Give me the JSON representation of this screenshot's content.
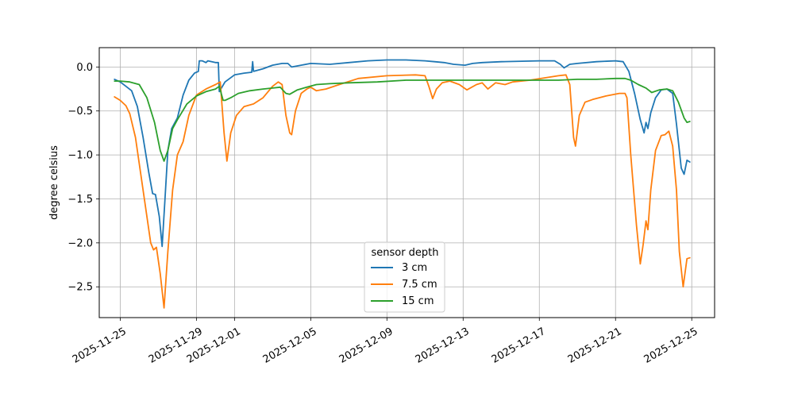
{
  "chart_data": {
    "type": "line",
    "title": "",
    "xlabel": "",
    "ylabel": "degree celsius",
    "x_ticks": [
      "2025-11-25",
      "2025-11-29",
      "2025-12-01",
      "2025-12-05",
      "2025-12-09",
      "2025-12-13",
      "2025-12-17",
      "2025-12-21",
      "2025-12-25"
    ],
    "y_ticks": [
      "0.0",
      "−0.5",
      "−1.0",
      "−1.5",
      "−2.0",
      "−2.5"
    ],
    "x_range_days": [
      -1.1,
      31.2
    ],
    "x_origin": "2025-11-25",
    "ylim": [
      -2.85,
      0.22
    ],
    "grid": true,
    "legend": {
      "title": "sensor depth",
      "placement": "lower center"
    },
    "series": [
      {
        "name": "3 cm",
        "color": "#1f77b4",
        "points": [
          [
            -0.3,
            -0.14
          ],
          [
            0,
            -0.17
          ],
          [
            0.3,
            -0.22
          ],
          [
            0.6,
            -0.27
          ],
          [
            0.9,
            -0.45
          ],
          [
            1.2,
            -0.8
          ],
          [
            1.5,
            -1.2
          ],
          [
            1.7,
            -1.44
          ],
          [
            1.85,
            -1.45
          ],
          [
            2.05,
            -1.7
          ],
          [
            2.2,
            -2.04
          ],
          [
            2.35,
            -1.5
          ],
          [
            2.5,
            -0.95
          ],
          [
            2.7,
            -0.7
          ],
          [
            3.0,
            -0.58
          ],
          [
            3.3,
            -0.32
          ],
          [
            3.6,
            -0.15
          ],
          [
            3.9,
            -0.07
          ],
          [
            4.1,
            -0.05
          ],
          [
            4.15,
            0.07
          ],
          [
            4.3,
            0.07
          ],
          [
            4.5,
            0.05
          ],
          [
            4.6,
            0.07
          ],
          [
            5.0,
            0.05
          ],
          [
            5.15,
            0.05
          ],
          [
            5.2,
            -0.28
          ],
          [
            5.5,
            -0.17
          ],
          [
            6.0,
            -0.09
          ],
          [
            6.5,
            -0.07
          ],
          [
            6.9,
            -0.06
          ],
          [
            6.95,
            0.06
          ],
          [
            7.0,
            -0.05
          ],
          [
            7.5,
            -0.02
          ],
          [
            8.0,
            0.02
          ],
          [
            8.5,
            0.04
          ],
          [
            8.8,
            0.04
          ],
          [
            9.0,
            0.0
          ],
          [
            9.5,
            0.02
          ],
          [
            10,
            0.04
          ],
          [
            11,
            0.03
          ],
          [
            12,
            0.05
          ],
          [
            13,
            0.07
          ],
          [
            14,
            0.08
          ],
          [
            15,
            0.08
          ],
          [
            16,
            0.07
          ],
          [
            16.5,
            0.06
          ],
          [
            17,
            0.05
          ],
          [
            17.5,
            0.03
          ],
          [
            18.1,
            0.02
          ],
          [
            18.5,
            0.04
          ],
          [
            19,
            0.05
          ],
          [
            20,
            0.06
          ],
          [
            22,
            0.07
          ],
          [
            22.8,
            0.07
          ],
          [
            23.1,
            0.03
          ],
          [
            23.3,
            -0.01
          ],
          [
            23.6,
            0.03
          ],
          [
            24,
            0.04
          ],
          [
            25,
            0.06
          ],
          [
            26,
            0.07
          ],
          [
            26.4,
            0.06
          ],
          [
            26.7,
            -0.05
          ],
          [
            27.0,
            -0.3
          ],
          [
            27.3,
            -0.6
          ],
          [
            27.5,
            -0.75
          ],
          [
            27.6,
            -0.63
          ],
          [
            27.7,
            -0.7
          ],
          [
            27.85,
            -0.52
          ],
          [
            28.1,
            -0.35
          ],
          [
            28.4,
            -0.26
          ],
          [
            28.7,
            -0.25
          ],
          [
            29.0,
            -0.3
          ],
          [
            29.2,
            -0.65
          ],
          [
            29.45,
            -1.15
          ],
          [
            29.6,
            -1.22
          ],
          [
            29.75,
            -1.06
          ],
          [
            29.9,
            -1.08
          ]
        ]
      },
      {
        "name": "7.5 cm",
        "color": "#ff7f0e",
        "points": [
          [
            -0.3,
            -0.34
          ],
          [
            0,
            -0.38
          ],
          [
            0.3,
            -0.44
          ],
          [
            0.5,
            -0.53
          ],
          [
            0.8,
            -0.8
          ],
          [
            1.0,
            -1.1
          ],
          [
            1.3,
            -1.55
          ],
          [
            1.6,
            -2.0
          ],
          [
            1.75,
            -2.08
          ],
          [
            1.9,
            -2.05
          ],
          [
            2.1,
            -2.35
          ],
          [
            2.3,
            -2.74
          ],
          [
            2.5,
            -2.1
          ],
          [
            2.75,
            -1.4
          ],
          [
            3.0,
            -1.0
          ],
          [
            3.3,
            -0.85
          ],
          [
            3.6,
            -0.55
          ],
          [
            4.0,
            -0.32
          ],
          [
            4.5,
            -0.25
          ],
          [
            5.0,
            -0.2
          ],
          [
            5.25,
            -0.17
          ],
          [
            5.45,
            -0.75
          ],
          [
            5.6,
            -1.07
          ],
          [
            5.8,
            -0.75
          ],
          [
            6.1,
            -0.55
          ],
          [
            6.5,
            -0.45
          ],
          [
            7.0,
            -0.42
          ],
          [
            7.5,
            -0.35
          ],
          [
            8.0,
            -0.22
          ],
          [
            8.3,
            -0.17
          ],
          [
            8.5,
            -0.2
          ],
          [
            8.7,
            -0.55
          ],
          [
            8.9,
            -0.75
          ],
          [
            9.0,
            -0.77
          ],
          [
            9.2,
            -0.5
          ],
          [
            9.5,
            -0.3
          ],
          [
            9.8,
            -0.25
          ],
          [
            10.0,
            -0.23
          ],
          [
            10.3,
            -0.27
          ],
          [
            10.8,
            -0.25
          ],
          [
            11.5,
            -0.2
          ],
          [
            12.5,
            -0.13
          ],
          [
            14,
            -0.1
          ],
          [
            15.5,
            -0.09
          ],
          [
            16.0,
            -0.1
          ],
          [
            16.2,
            -0.22
          ],
          [
            16.4,
            -0.36
          ],
          [
            16.6,
            -0.25
          ],
          [
            16.9,
            -0.18
          ],
          [
            17.3,
            -0.16
          ],
          [
            17.8,
            -0.2
          ],
          [
            18.2,
            -0.26
          ],
          [
            18.7,
            -0.2
          ],
          [
            19.0,
            -0.18
          ],
          [
            19.3,
            -0.25
          ],
          [
            19.7,
            -0.18
          ],
          [
            20.2,
            -0.2
          ],
          [
            20.6,
            -0.17
          ],
          [
            21.5,
            -0.15
          ],
          [
            23.0,
            -0.1
          ],
          [
            23.4,
            -0.09
          ],
          [
            23.6,
            -0.2
          ],
          [
            23.8,
            -0.8
          ],
          [
            23.9,
            -0.9
          ],
          [
            24.1,
            -0.55
          ],
          [
            24.4,
            -0.4
          ],
          [
            24.8,
            -0.37
          ],
          [
            25.5,
            -0.33
          ],
          [
            26.2,
            -0.3
          ],
          [
            26.5,
            -0.3
          ],
          [
            26.6,
            -0.35
          ],
          [
            26.8,
            -1.0
          ],
          [
            27.1,
            -1.8
          ],
          [
            27.3,
            -2.24
          ],
          [
            27.45,
            -2.02
          ],
          [
            27.6,
            -1.75
          ],
          [
            27.7,
            -1.85
          ],
          [
            27.85,
            -1.4
          ],
          [
            28.1,
            -0.95
          ],
          [
            28.4,
            -0.78
          ],
          [
            28.6,
            -0.77
          ],
          [
            28.8,
            -0.73
          ],
          [
            29.0,
            -0.9
          ],
          [
            29.2,
            -1.4
          ],
          [
            29.35,
            -2.1
          ],
          [
            29.55,
            -2.5
          ],
          [
            29.75,
            -2.18
          ],
          [
            29.9,
            -2.17
          ]
        ]
      },
      {
        "name": "15 cm",
        "color": "#2ca02c",
        "points": [
          [
            -0.3,
            -0.16
          ],
          [
            0,
            -0.16
          ],
          [
            0.5,
            -0.17
          ],
          [
            1.0,
            -0.2
          ],
          [
            1.4,
            -0.35
          ],
          [
            1.8,
            -0.63
          ],
          [
            2.1,
            -0.95
          ],
          [
            2.3,
            -1.07
          ],
          [
            2.5,
            -0.95
          ],
          [
            2.75,
            -0.7
          ],
          [
            3.0,
            -0.6
          ],
          [
            3.5,
            -0.42
          ],
          [
            4.0,
            -0.33
          ],
          [
            4.5,
            -0.28
          ],
          [
            5.0,
            -0.25
          ],
          [
            5.2,
            -0.22
          ],
          [
            5.4,
            -0.38
          ],
          [
            5.5,
            -0.38
          ],
          [
            5.8,
            -0.35
          ],
          [
            6.2,
            -0.3
          ],
          [
            6.8,
            -0.27
          ],
          [
            7.5,
            -0.25
          ],
          [
            8.0,
            -0.24
          ],
          [
            8.4,
            -0.23
          ],
          [
            8.7,
            -0.3
          ],
          [
            8.9,
            -0.31
          ],
          [
            9.3,
            -0.26
          ],
          [
            9.8,
            -0.23
          ],
          [
            10.3,
            -0.2
          ],
          [
            11.0,
            -0.19
          ],
          [
            12.0,
            -0.18
          ],
          [
            13.5,
            -0.17
          ],
          [
            15,
            -0.15
          ],
          [
            16.5,
            -0.15
          ],
          [
            18,
            -0.15
          ],
          [
            20,
            -0.15
          ],
          [
            21,
            -0.15
          ],
          [
            22,
            -0.15
          ],
          [
            23,
            -0.15
          ],
          [
            24,
            -0.14
          ],
          [
            25,
            -0.14
          ],
          [
            26,
            -0.13
          ],
          [
            26.5,
            -0.13
          ],
          [
            26.8,
            -0.15
          ],
          [
            27.2,
            -0.2
          ],
          [
            27.6,
            -0.24
          ],
          [
            27.9,
            -0.29
          ],
          [
            28.3,
            -0.26
          ],
          [
            28.7,
            -0.25
          ],
          [
            29.0,
            -0.27
          ],
          [
            29.3,
            -0.4
          ],
          [
            29.6,
            -0.58
          ],
          [
            29.75,
            -0.63
          ],
          [
            29.9,
            -0.62
          ]
        ]
      }
    ]
  }
}
